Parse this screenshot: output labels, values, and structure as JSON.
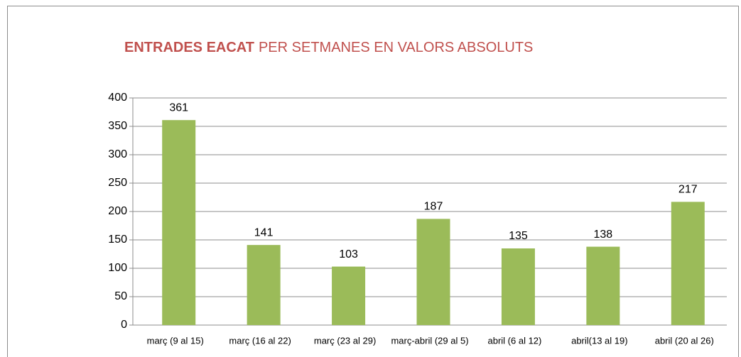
{
  "chart_data": {
    "type": "bar",
    "title": [
      "ENTRADES EACAT",
      "PER SETMANES EN VALORS ABSOLUTS"
    ],
    "title_color": "#c0504d",
    "categories": [
      "març (9 al 15)",
      "març (16 al 22)",
      "març (23 al 29)",
      "març-abril (29 al 5)",
      "abril (6 al 12)",
      "abril(13 al 19)",
      "abril (20 al 26)"
    ],
    "values": [
      361,
      141,
      103,
      187,
      135,
      138,
      217
    ],
    "color": "#9bbb59",
    "ylim": [
      0,
      400
    ],
    "yticks": [
      0,
      50,
      100,
      150,
      200,
      250,
      300,
      350,
      400
    ],
    "grid": true
  }
}
